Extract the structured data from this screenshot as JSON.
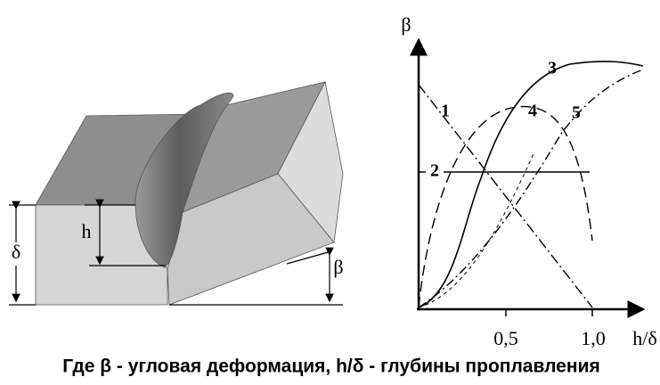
{
  "chart_axes": {
    "y_label": "β",
    "x_label": "h/δ",
    "x_tick_1": "0,5",
    "x_tick_2": "1,0"
  },
  "curves": [
    "1",
    "2",
    "3",
    "4",
    "5"
  ],
  "block": {
    "h": "h",
    "delta": "δ",
    "beta": "β"
  },
  "caption": "Где β - угловая деформация, h/δ - глубины проплавления"
}
